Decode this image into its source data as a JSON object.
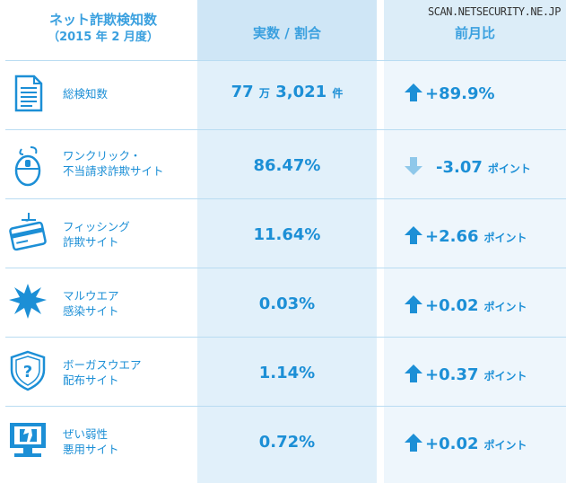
{
  "site_credit": "SCAN.NETSECURITY.NE.JP",
  "header": {
    "title": "ネット詐欺検知数",
    "subtitle": "（2015 年 2 月度）",
    "col_value": "実数 / 割合",
    "col_change": "前月比"
  },
  "colors": {
    "accent": "#1c8fd6",
    "header_blue": "#3aa0df",
    "up_arrow": "#1c8fd6",
    "down_arrow": "#8fc8ea"
  },
  "rows": [
    {
      "icon": "document-icon",
      "label_1": "総検知数",
      "label_2": "",
      "value_main": "77",
      "value_unit1": "万",
      "value_main2": "3,021",
      "value_unit2": "件",
      "direction": "up",
      "change": "+89.9%",
      "change_unit": ""
    },
    {
      "icon": "mouse-hook-icon",
      "label_1": "ワンクリック・",
      "label_2": "不当請求詐欺サイト",
      "value_main": "86.47%",
      "value_unit1": "",
      "value_main2": "",
      "value_unit2": "",
      "direction": "down",
      "change": "-3.07",
      "change_unit": "ポイント"
    },
    {
      "icon": "card-hook-icon",
      "label_1": "フィッシング",
      "label_2": "詐欺サイト",
      "value_main": "11.64%",
      "value_unit1": "",
      "value_main2": "",
      "value_unit2": "",
      "direction": "up",
      "change": "+2.66",
      "change_unit": "ポイント"
    },
    {
      "icon": "virus-splat-icon",
      "label_1": "マルウエア",
      "label_2": "感染サイト",
      "value_main": "0.03%",
      "value_unit1": "",
      "value_main2": "",
      "value_unit2": "",
      "direction": "up",
      "change": "+0.02",
      "change_unit": "ポイント"
    },
    {
      "icon": "shield-question-icon",
      "label_1": "ボーガスウエア",
      "label_2": "配布サイト",
      "value_main": "1.14%",
      "value_unit1": "",
      "value_main2": "",
      "value_unit2": "",
      "direction": "up",
      "change": "+0.37",
      "change_unit": "ポイント"
    },
    {
      "icon": "broken-monitor-icon",
      "label_1": "ぜい弱性",
      "label_2": "悪用サイト",
      "value_main": "0.72%",
      "value_unit1": "",
      "value_main2": "",
      "value_unit2": "",
      "direction": "up",
      "change": "+0.02",
      "change_unit": "ポイント"
    }
  ]
}
